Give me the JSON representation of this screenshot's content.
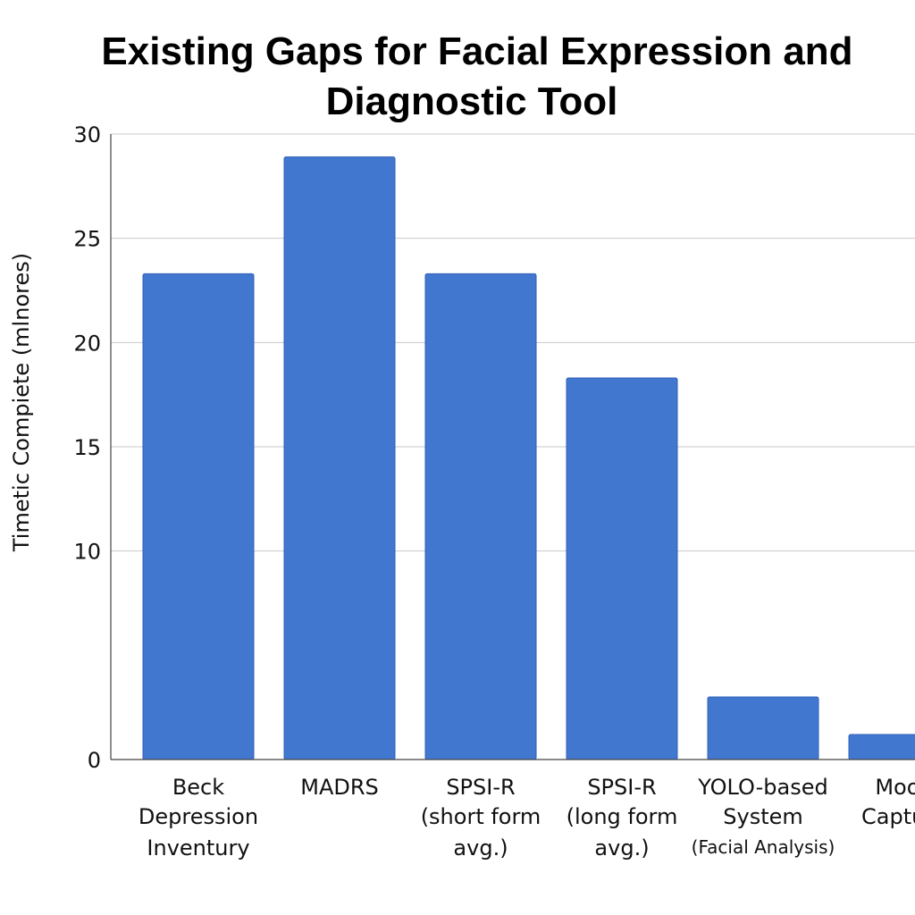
{
  "chart_data": {
    "type": "bar",
    "title_lines": [
      "Existing Gaps for Facial Expression and",
      "Diagnostic Tool"
    ],
    "ylabel": "Timetic Compiete (mlnores)",
    "xlabel": "",
    "ylim": [
      0,
      30
    ],
    "yticks": [
      "0",
      "10",
      "15",
      "20",
      "25",
      "30"
    ],
    "grid": true,
    "bar_color": "#4277d0",
    "categories": [
      {
        "lines": [
          "Beck",
          "Depression",
          "Inventury"
        ],
        "value": 23.3
      },
      {
        "lines": [
          "MADRS"
        ],
        "value": 28.9
      },
      {
        "lines": [
          "SPSI-R",
          "(short form",
          "avg.)"
        ],
        "value": 23.3
      },
      {
        "lines": [
          "SPSI-R",
          "(long form",
          "avg.)"
        ],
        "value": 18.3
      },
      {
        "lines": [
          "YOLO-based",
          "System",
          "(Facial Analysis)"
        ],
        "value": 3.0
      },
      {
        "lines": [
          "Mood",
          "Captura"
        ],
        "value": 1.2
      }
    ]
  }
}
